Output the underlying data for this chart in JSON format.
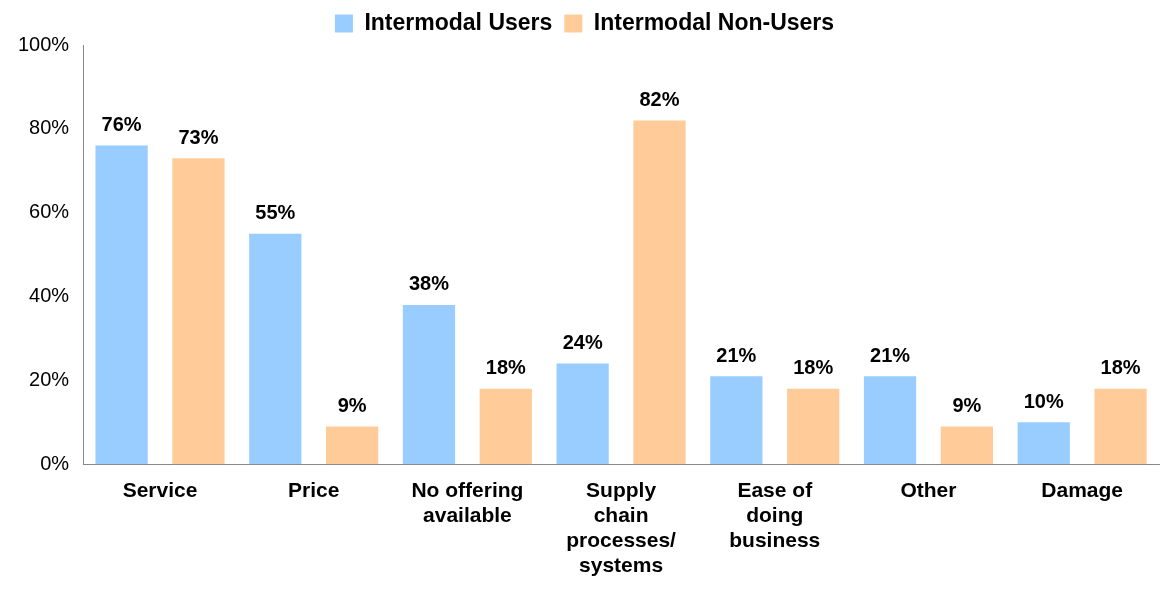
{
  "chart_data": {
    "type": "bar",
    "categories": [
      "Service",
      "Price",
      "No offering available",
      "Supply chain processes/ systems",
      "Ease of doing business",
      "Other",
      "Damage"
    ],
    "series": [
      {
        "name": "Intermodal Users",
        "color": "#99ccff",
        "values": [
          76,
          55,
          38,
          24,
          21,
          21,
          10
        ],
        "value_labels": [
          "76%",
          "55%",
          "38%",
          "24%",
          "21%",
          "21%",
          "10%"
        ]
      },
      {
        "name": "Intermodal Non-Users",
        "color": "#ffcc99",
        "values": [
          73,
          9,
          18,
          82,
          18,
          9,
          18
        ],
        "value_labels": [
          "73%",
          "9%",
          "18%",
          "82%",
          "18%",
          "9%",
          "18%"
        ]
      }
    ],
    "ylim": [
      0,
      100
    ],
    "yticks": [
      {
        "value": 0,
        "label": "0%"
      },
      {
        "value": 20,
        "label": "20%"
      },
      {
        "value": 40,
        "label": "40%"
      },
      {
        "value": 60,
        "label": "60%"
      },
      {
        "value": 80,
        "label": "80%"
      },
      {
        "value": 100,
        "label": "100%"
      }
    ],
    "grid": false,
    "legend": "top"
  }
}
